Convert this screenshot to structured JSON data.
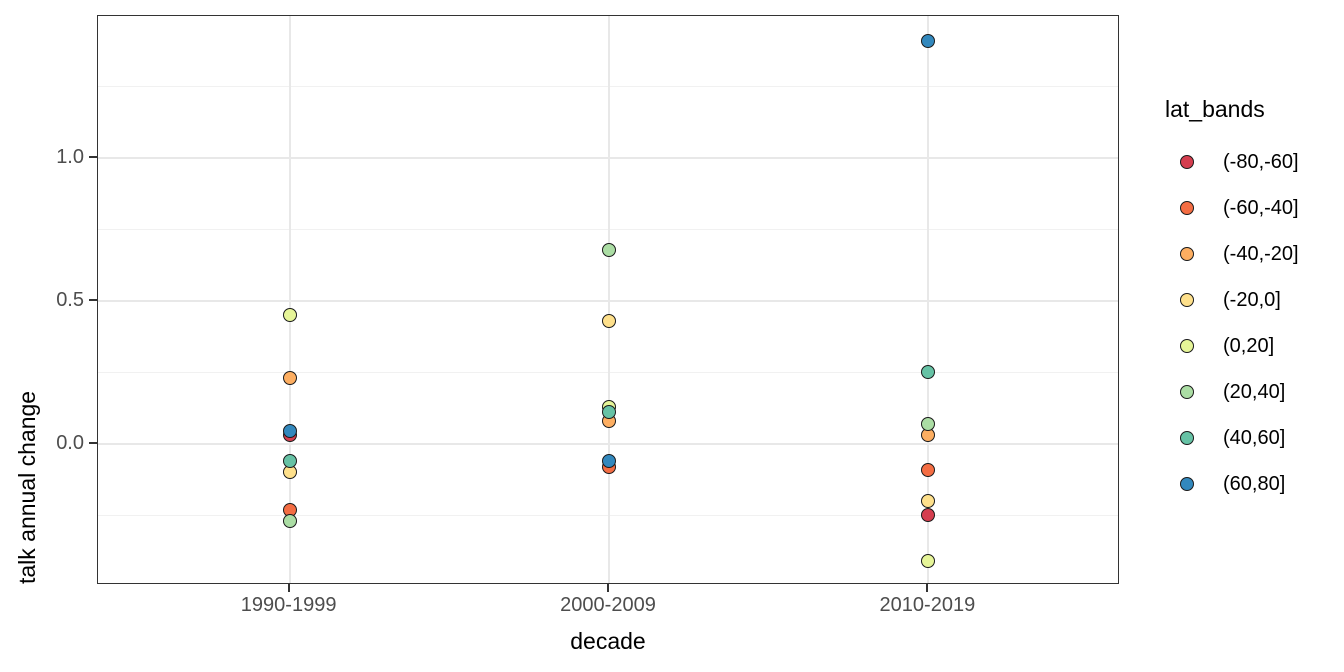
{
  "chart_data": {
    "type": "scatter",
    "title": "",
    "xlabel": "decade",
    "ylabel": "talk annual change",
    "legend_title": "lat_bands",
    "legend_position": "right",
    "grid": "major+minor",
    "categories": [
      "1990-1999",
      "2000-2009",
      "2010-2019"
    ],
    "series": [
      {
        "name": "(-80,-60]",
        "color": "#D53E4F",
        "values": [
          0.03,
          null,
          -0.25
        ]
      },
      {
        "name": "(-60,-40]",
        "color": "#F46D43",
        "values": [
          -0.23,
          -0.08,
          -0.09
        ]
      },
      {
        "name": "(-40,-20]",
        "color": "#FDAE61",
        "values": [
          0.23,
          0.08,
          0.03
        ]
      },
      {
        "name": "(-20,0]",
        "color": "#FEE08B",
        "values": [
          -0.1,
          0.43,
          -0.2
        ]
      },
      {
        "name": "(0,20]",
        "color": "#E6F598",
        "values": [
          0.45,
          0.13,
          -0.41
        ]
      },
      {
        "name": "(20,40]",
        "color": "#ABDDA4",
        "values": [
          -0.27,
          0.68,
          0.07
        ]
      },
      {
        "name": "(40,60]",
        "color": "#66C2A5",
        "values": [
          -0.06,
          0.11,
          0.25
        ]
      },
      {
        "name": "(60,80]",
        "color": "#3288BD",
        "values": [
          0.045,
          -0.06,
          1.41
        ]
      }
    ],
    "y_axis": {
      "tick_labels": [
        "0.0",
        "0.5",
        "1.0"
      ],
      "ticks": [
        0.0,
        0.5,
        1.0
      ],
      "minor_ticks": [
        -0.25,
        0.25,
        0.75,
        1.25
      ],
      "ylim": [
        -0.494,
        1.498
      ]
    }
  },
  "style": {
    "panel_border_color": "#333333",
    "major_grid_color": "#e8e8e8",
    "minor_grid_color": "#f1f1f1",
    "tick_text_color": "#4d4d4d",
    "axis_title_color": "#000000"
  }
}
